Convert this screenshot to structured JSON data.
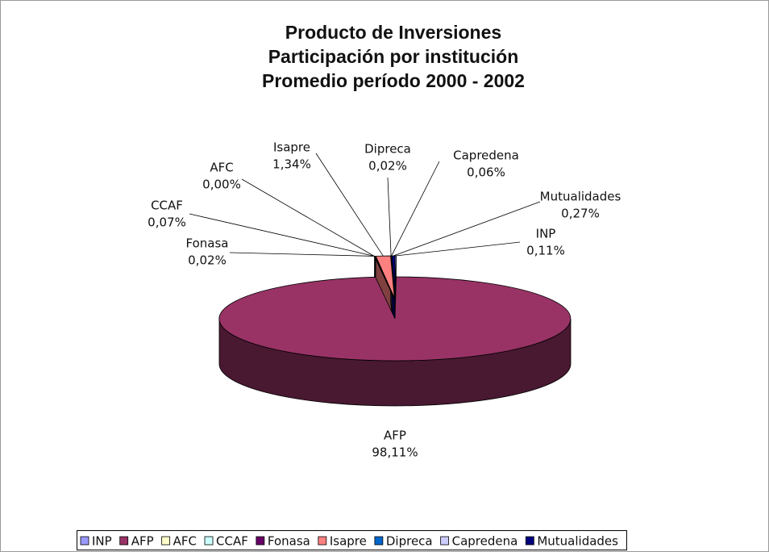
{
  "chart_data": {
    "type": "pie3d",
    "title": [
      "Producto de Inversiones",
      "Participación por institución",
      "Promedio período 2000 - 2002"
    ],
    "categories": [
      "INP",
      "AFP",
      "AFC",
      "CCAF",
      "Fonasa",
      "Isapre",
      "Dipreca",
      "Capredena",
      "Mutualidades"
    ],
    "values": [
      0.11,
      98.11,
      0.0,
      0.07,
      0.02,
      1.34,
      0.02,
      0.06,
      0.27
    ],
    "value_labels": [
      "0,11%",
      "98,11%",
      "0,00%",
      "0,07%",
      "0,02%",
      "1,34%",
      "0,02%",
      "0,06%",
      "0,27%"
    ],
    "colors": [
      "#9999ff",
      "#993366",
      "#ffffcc",
      "#ccffff",
      "#660066",
      "#ff8080",
      "#0066cc",
      "#ccccff",
      "#000080"
    ],
    "legend": "bottom"
  }
}
